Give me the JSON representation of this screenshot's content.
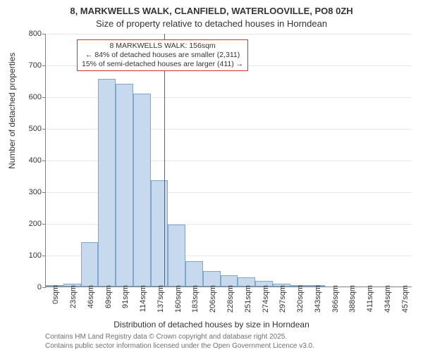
{
  "title_line1": "8, MARKWELLS WALK, CLANFIELD, WATERLOOVILLE, PO8 0ZH",
  "title_line2": "Size of property relative to detached houses in Horndean",
  "y_axis_label": "Number of detached properties",
  "x_axis_label": "Distribution of detached houses by size in Horndean",
  "credit_line1": "Contains HM Land Registry data © Crown copyright and database right 2025.",
  "credit_line2": "Contains public sector information licensed under the Open Government Licence v3.0.",
  "chart": {
    "type": "histogram",
    "ylim": [
      0,
      800
    ],
    "ytick_step": 100,
    "categories": [
      "0sqm",
      "23sqm",
      "46sqm",
      "69sqm",
      "91sqm",
      "114sqm",
      "137sqm",
      "160sqm",
      "183sqm",
      "206sqm",
      "228sqm",
      "251sqm",
      "274sqm",
      "297sqm",
      "320sqm",
      "343sqm",
      "366sqm",
      "388sqm",
      "411sqm",
      "434sqm",
      "457sqm"
    ],
    "values": [
      1,
      10,
      140,
      655,
      640,
      610,
      335,
      195,
      80,
      50,
      35,
      28,
      18,
      10,
      1,
      1,
      0,
      0,
      0,
      0,
      0
    ],
    "bar_fill": "#c7d9ed",
    "bar_border": "#82a5cc",
    "grid_color": "#e6e6e6",
    "axis_color": "#808080",
    "background_color": "#ffffff",
    "marker_value_sqm": 156,
    "marker_color": "#cc3333",
    "axis_fontsize": 11,
    "label_fontsize": 12,
    "title_fontsize": 13
  },
  "annotation": {
    "line1": "8 MARKWELLS WALK: 156sqm",
    "line2": "← 84% of detached houses are smaller (2,311)",
    "line3": "15% of semi-detached houses are larger (411) →"
  }
}
